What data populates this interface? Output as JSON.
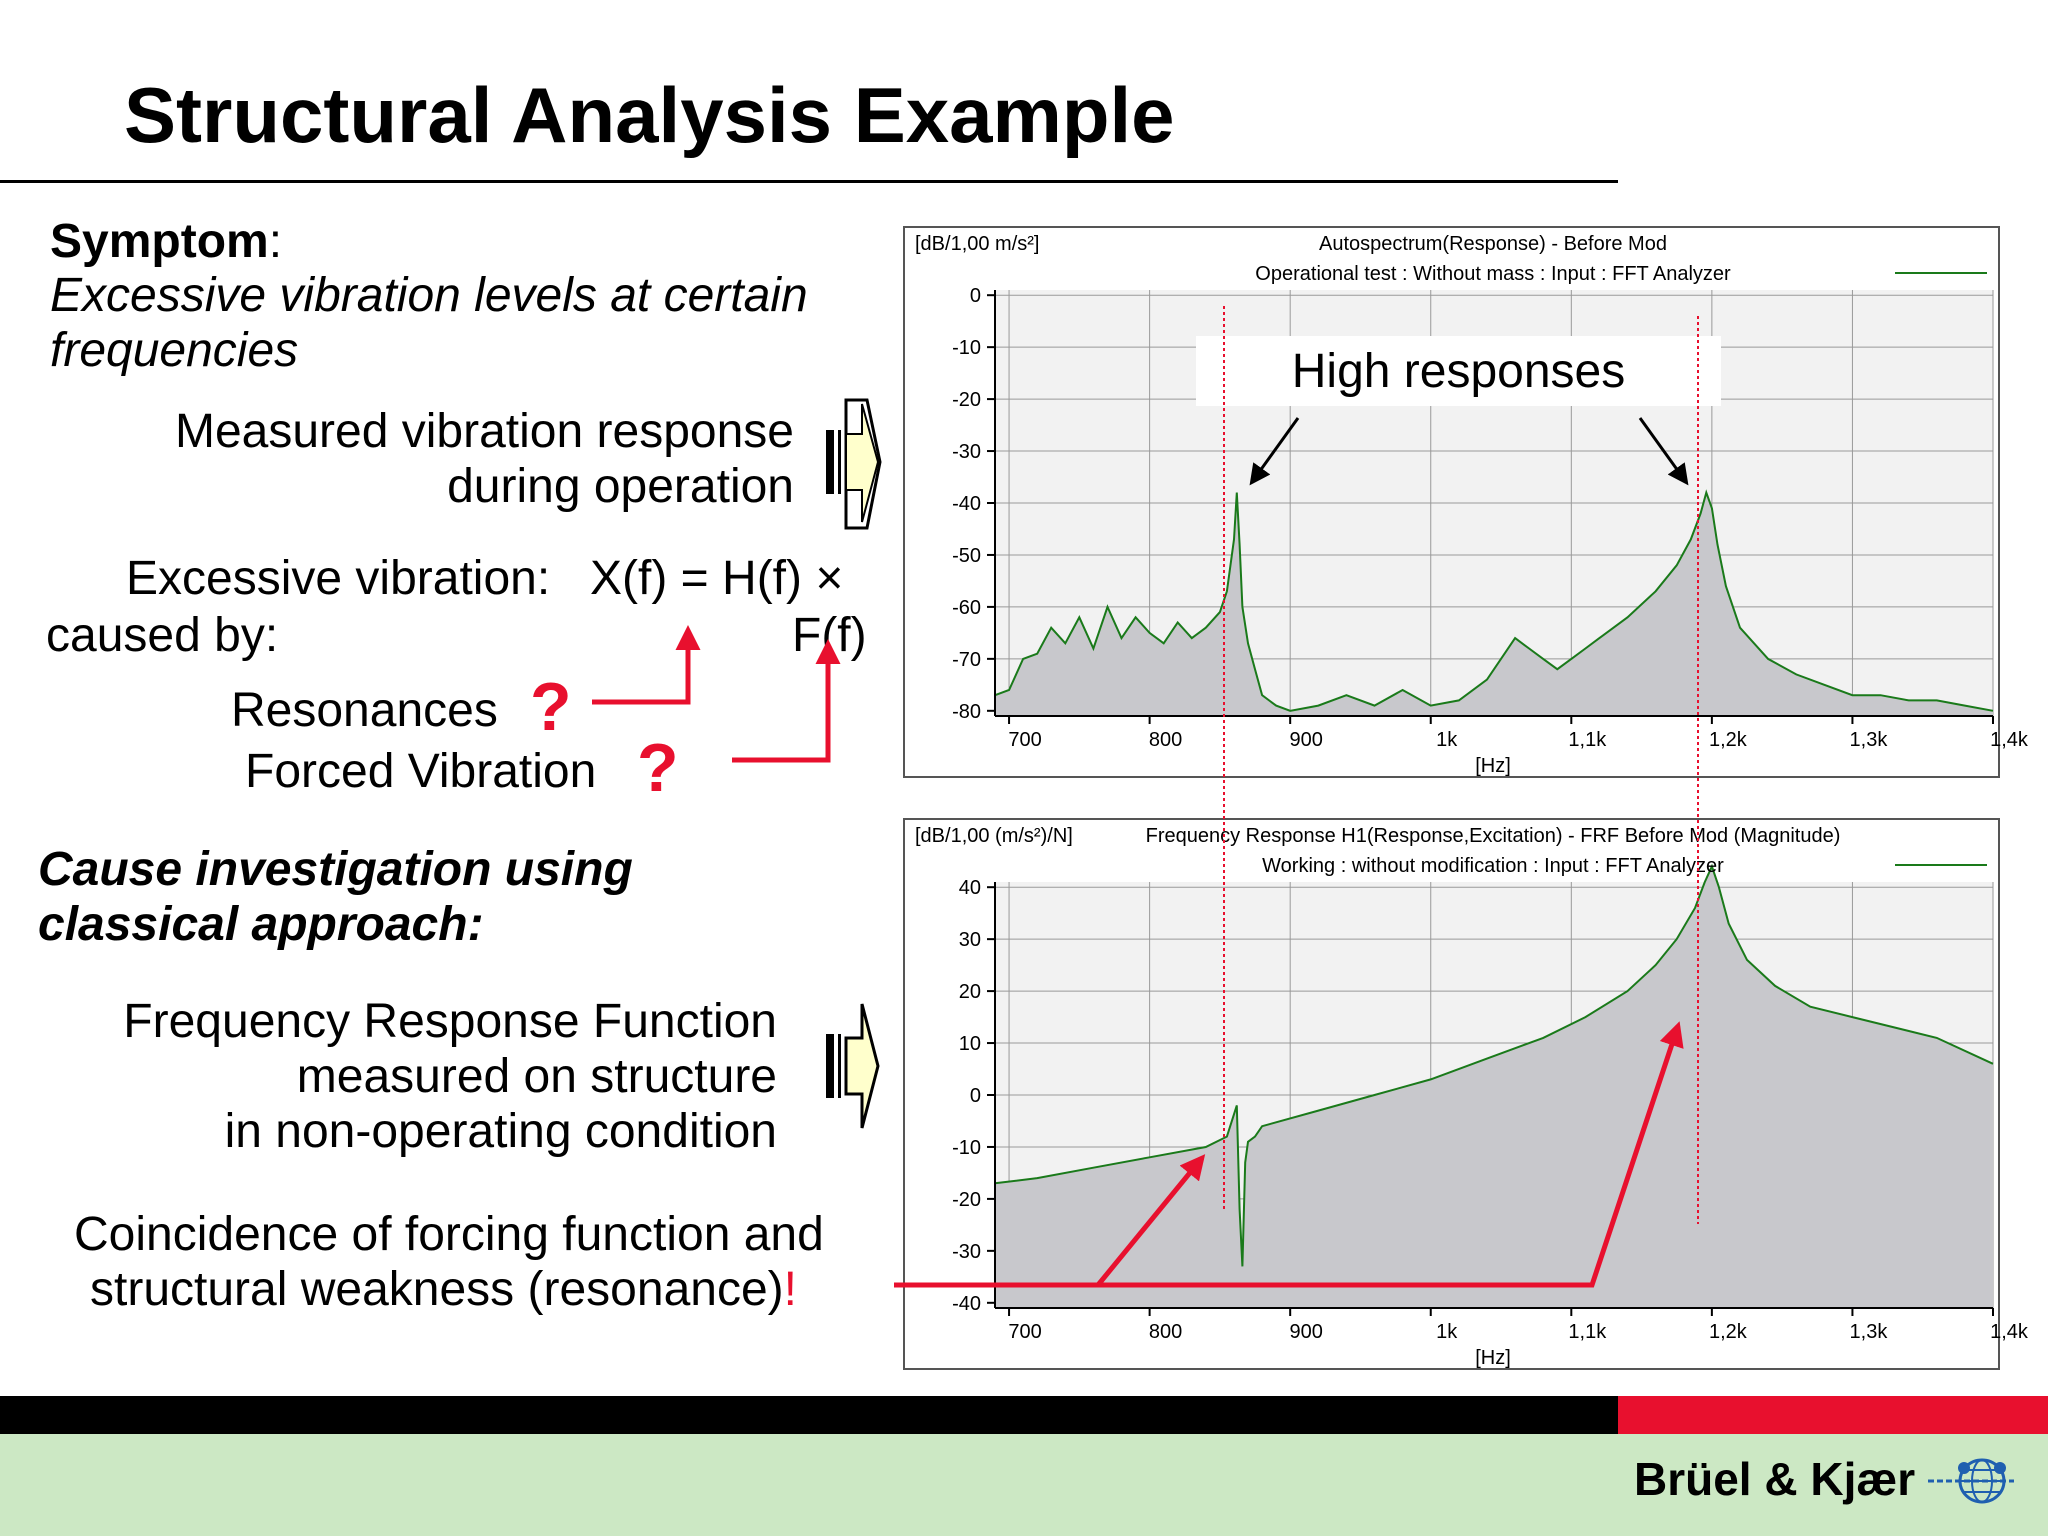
{
  "title": "Structural Analysis Example",
  "symptom": {
    "label": "Symptom",
    "colon": ":",
    "line1": "Excessive vibration levels at certain",
    "line2": "frequencies"
  },
  "measured": {
    "line1": "Measured vibration response",
    "line2": "during operation"
  },
  "excessive": {
    "line1": "Excessive vibration:",
    "equation": "X(f) = H(f) ×",
    "line2": "caused by:",
    "ff": "F(f)"
  },
  "causes": {
    "resonances": "Resonances",
    "forced": "Forced Vibration",
    "qmark": "?"
  },
  "cause_investigation": {
    "line1": "Cause investigation using",
    "line2": "classical approach:"
  },
  "frf_text": {
    "line1": "Frequency Response Function",
    "line2": "measured on structure",
    "line3": "in non-operating condition"
  },
  "coincidence": {
    "line1": "Coincidence of forcing function and",
    "line2": "structural weakness (resonance)",
    "excl": "!"
  },
  "high_responses": "High responses",
  "brand": "Brüel & Kjær",
  "colors": {
    "accent_red": "#e8102e",
    "trace_green": "#1a7a1a",
    "fill_gray": "#c8c8cc",
    "footer_green": "#cce8c4"
  },
  "chart_data": [
    {
      "type": "line",
      "unit_label": "[dB/1,00 m/s²]",
      "title": "Autospectrum(Response) - Before Mod",
      "subtitle": "Operational test : Without mass : Input : FFT Analyzer",
      "xlabel": "[Hz]",
      "x_ticks": [
        "700",
        "800",
        "900",
        "1k",
        "1,1k",
        "1,2k",
        "1,3k",
        "1,4k"
      ],
      "y_ticks": [
        "0",
        "-10",
        "-20",
        "-30",
        "-40",
        "-50",
        "-60",
        "-70",
        "-80"
      ],
      "xlim": [
        690,
        1400
      ],
      "ylim": [
        -81,
        1
      ],
      "grid": true,
      "legend": "top-right",
      "x": [
        690,
        700,
        710,
        720,
        730,
        740,
        750,
        760,
        770,
        780,
        790,
        800,
        810,
        820,
        830,
        840,
        850,
        855,
        860,
        862,
        864,
        866,
        870,
        875,
        880,
        890,
        900,
        920,
        940,
        960,
        980,
        1000,
        1020,
        1040,
        1060,
        1070,
        1080,
        1090,
        1100,
        1110,
        1120,
        1140,
        1160,
        1175,
        1185,
        1192,
        1196,
        1200,
        1204,
        1210,
        1220,
        1240,
        1260,
        1280,
        1300,
        1320,
        1340,
        1360,
        1380,
        1400
      ],
      "y": [
        -77,
        -76,
        -70,
        -69,
        -64,
        -67,
        -62,
        -68,
        -60,
        -66,
        -62,
        -65,
        -67,
        -63,
        -66,
        -64,
        -61,
        -57,
        -47,
        -38,
        -48,
        -60,
        -67,
        -72,
        -77,
        -79,
        -80,
        -79,
        -77,
        -79,
        -76,
        -79,
        -78,
        -74,
        -66,
        -68,
        -70,
        -72,
        -70,
        -68,
        -66,
        -62,
        -57,
        -52,
        -47,
        -42,
        -38,
        -41,
        -48,
        -56,
        -64,
        -70,
        -73,
        -75,
        -77,
        -77,
        -78,
        -78,
        -79,
        -80
      ]
    },
    {
      "type": "line",
      "unit_label": "[dB/1,00 (m/s²)/N]",
      "title": "Frequency Response H1(Response,Excitation) - FRF Before Mod (Magnitude)",
      "subtitle": "Working : without modification : Input : FFT Analyzer",
      "xlabel": "[Hz]",
      "x_ticks": [
        "700",
        "800",
        "900",
        "1k",
        "1,1k",
        "1,2k",
        "1,3k",
        "1,4k"
      ],
      "y_ticks": [
        "40",
        "30",
        "20",
        "10",
        "0",
        "-10",
        "-20",
        "-30",
        "-40"
      ],
      "xlim": [
        690,
        1400
      ],
      "ylim": [
        -41,
        41
      ],
      "grid": true,
      "legend": "top-right",
      "x": [
        690,
        720,
        760,
        800,
        840,
        855,
        862,
        864,
        866,
        868,
        870,
        875,
        880,
        920,
        960,
        1000,
        1040,
        1080,
        1110,
        1140,
        1160,
        1175,
        1188,
        1195,
        1200,
        1205,
        1212,
        1225,
        1245,
        1270,
        1300,
        1330,
        1360,
        1400
      ],
      "y": [
        -17,
        -16,
        -14,
        -12,
        -10,
        -8,
        -2,
        -22,
        -33,
        -13,
        -9,
        -8,
        -6,
        -3,
        0,
        3,
        7,
        11,
        15,
        20,
        25,
        30,
        36,
        41,
        44,
        40,
        33,
        26,
        21,
        17,
        15,
        13,
        11,
        6
      ]
    }
  ]
}
